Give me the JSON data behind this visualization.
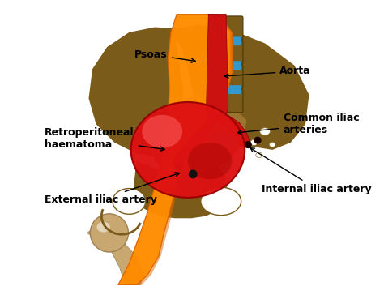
{
  "bg_color": "#ffffff",
  "labels": {
    "psoas": "Psoas",
    "aorta": "Aorta",
    "haematoma": "Retroperitoneal\nhaematoma",
    "common_iliac": "Common iliac\narteries",
    "external_iliac": "External iliac artery",
    "internal_iliac": "Internal iliac artery"
  },
  "colors": {
    "pelvis_dark": "#7B5B1A",
    "pelvis_med": "#9B7530",
    "pelvis_light": "#C8A870",
    "femur_light": "#C8A870",
    "femur_dark": "#A08050",
    "psoas_orange": "#FF8C00",
    "psoas_dark_orange": "#DD6600",
    "haematoma_red": "#DD1111",
    "haematoma_bright": "#FF2222",
    "haematoma_highlight": "#FF6666",
    "aorta_red": "#CC1111",
    "vertebra": "#7B5B1A",
    "disc_blue": "#3399CC",
    "background": "#ffffff"
  }
}
